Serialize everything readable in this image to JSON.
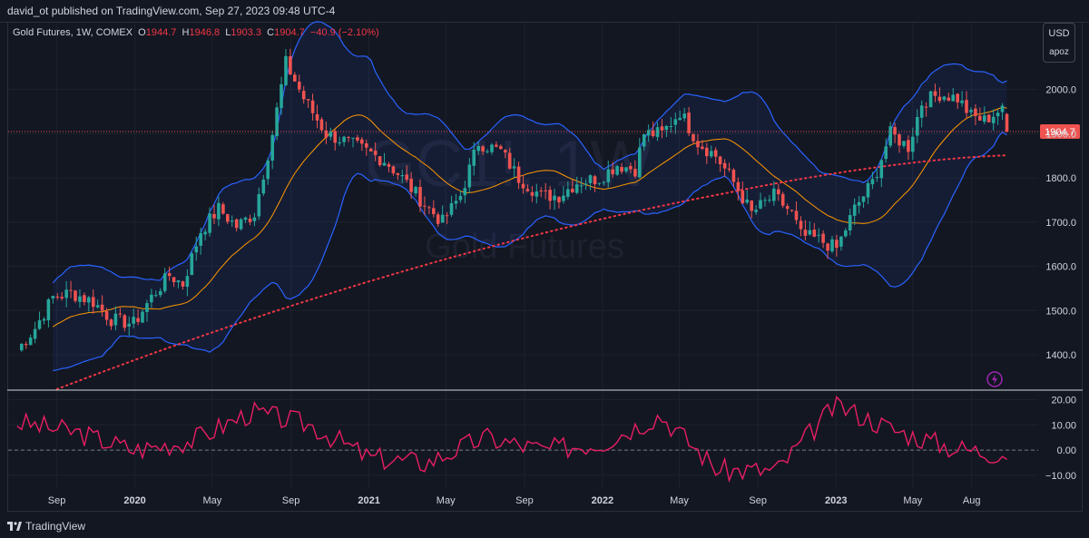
{
  "header": {
    "published": "david_ot published on TradingView.com, Sep 27, 2023 09:48 UTC-4"
  },
  "symbol": {
    "name": "Gold Futures, 1W, COMEX",
    "open_label": "O",
    "open": "1944.7",
    "high_label": "H",
    "high": "1946.8",
    "low_label": "L",
    "low": "1903.3",
    "close_label": "C",
    "close": "1904.7",
    "change": "−40.9 (−2.10%)"
  },
  "scale_box": {
    "currency": "USD",
    "unit": "apoz"
  },
  "watermark": {
    "ticker": "GC1!, 1W",
    "name": "Gold Futures"
  },
  "footer": {
    "brand": "TradingView"
  },
  "colors": {
    "up": "#26a69a",
    "down": "#ef5350",
    "bands": "#2962ff",
    "basis": "#ff9800",
    "sma200": "#f23645",
    "oscillator": "#e91e63",
    "background": "#131722"
  },
  "chart_data": [
    {
      "type": "candlestick",
      "title": "Gold Futures, 1W, COMEX",
      "ylim": [
        1320,
        2110
      ],
      "y_ticks": [
        1400,
        1500,
        1600,
        1700,
        1800,
        1900,
        2000
      ],
      "y_tick_labels": [
        "1400.0",
        "1500.0",
        "1600.0",
        "1700.0",
        "1800.0",
        "1900.0",
        "2000.0"
      ],
      "last_price": 1904.7,
      "last_price_label": "1904.7",
      "x_tick_labels": [
        "Sep",
        "2020",
        "May",
        "Sep",
        "2021",
        "May",
        "Sep",
        "2022",
        "May",
        "Sep",
        "2023",
        "May",
        "Aug"
      ],
      "x_tick_dates": [
        "2019-09",
        "2020-01",
        "2020-05",
        "2020-09",
        "2021-01",
        "2021-05",
        "2021-09",
        "2022-01",
        "2022-05",
        "2022-09",
        "2023-01",
        "2023-05",
        "2023-08"
      ],
      "close_path": {
        "dates": [
          "2019-07-01",
          "2019-07-29",
          "2019-08-26",
          "2019-09-23",
          "2019-10-28",
          "2019-11-25",
          "2019-12-30",
          "2020-01-27",
          "2020-02-24",
          "2020-03-16",
          "2020-04-13",
          "2020-05-11",
          "2020-06-08",
          "2020-07-06",
          "2020-08-03",
          "2020-08-24",
          "2020-09-21",
          "2020-10-26",
          "2020-11-30",
          "2020-12-28",
          "2021-01-25",
          "2021-02-22",
          "2021-03-29",
          "2021-04-26",
          "2021-05-24",
          "2021-06-21",
          "2021-07-26",
          "2021-08-23",
          "2021-09-27",
          "2021-10-25",
          "2021-11-22",
          "2021-12-27",
          "2022-01-24",
          "2022-02-21",
          "2022-03-07",
          "2022-04-04",
          "2022-05-02",
          "2022-05-30",
          "2022-06-27",
          "2022-07-25",
          "2022-08-22",
          "2022-09-26",
          "2022-10-24",
          "2022-11-07",
          "2022-12-05",
          "2023-01-02",
          "2023-01-30",
          "2023-02-27",
          "2023-03-27",
          "2023-04-24",
          "2023-05-15",
          "2023-06-12",
          "2023-07-10",
          "2023-07-31",
          "2023-08-21",
          "2023-09-11",
          "2023-09-25"
        ],
        "values": [
          1410,
          1460,
          1530,
          1540,
          1520,
          1480,
          1470,
          1530,
          1580,
          1560,
          1680,
          1730,
          1690,
          1720,
          1900,
          2060,
          1980,
          1900,
          1880,
          1860,
          1840,
          1800,
          1740,
          1700,
          1760,
          1880,
          1860,
          1800,
          1760,
          1760,
          1790,
          1800,
          1830,
          1820,
          1900,
          1900,
          1950,
          1880,
          1850,
          1790,
          1720,
          1760,
          1720,
          1670,
          1660,
          1640,
          1730,
          1790,
          1900,
          1870,
          1970,
          1990,
          1980,
          1940,
          1930,
          1950,
          1950
        ]
      },
      "series": [
        {
          "name": "BB basis",
          "values_note": "20-week moving average of close"
        },
        {
          "name": "BB upper"
        },
        {
          "name": "BB lower"
        },
        {
          "name": "SMA 200",
          "values_note": "dotted, rising from ~1320 (2019-09) to ~1855 (2023-09)"
        }
      ]
    },
    {
      "type": "line",
      "ylim": [
        -15,
        23
      ],
      "y_ticks": [
        -10,
        0,
        10,
        20
      ],
      "y_tick_labels": [
        "−10.00",
        "0.00",
        "10.00",
        "20.00"
      ],
      "x": [
        "2019-07",
        "2019-10",
        "2020-01",
        "2020-04",
        "2020-07",
        "2020-10",
        "2021-01",
        "2021-04",
        "2021-07",
        "2021-10",
        "2022-01",
        "2022-04",
        "2022-07",
        "2022-10",
        "2023-01",
        "2023-04",
        "2023-07",
        "2023-09"
      ],
      "values": [
        11,
        7,
        0,
        4,
        15,
        10,
        -3,
        -5,
        5,
        0,
        3,
        14,
        -8,
        -8,
        18,
        8,
        1,
        -1
      ]
    }
  ]
}
